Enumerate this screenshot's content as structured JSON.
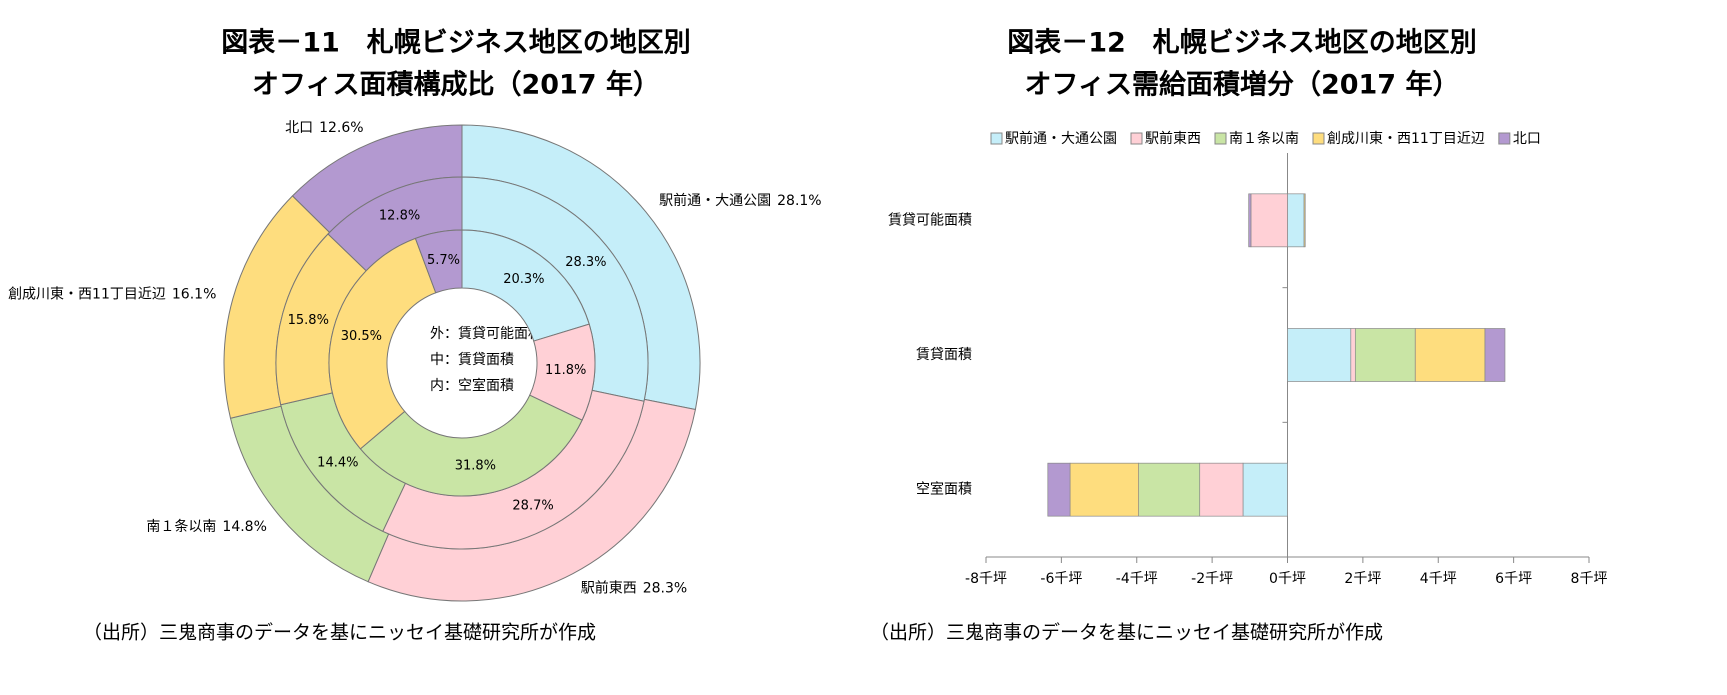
{
  "chart_data": [
    {
      "type": "donut",
      "title": [
        "図表－11　札幌ビジネス地区の地区別",
        "オフィス面積構成比（2017 年）"
      ],
      "categories": [
        "駅前通・大通公園",
        "駅前東西",
        "南１条以南",
        "創成川東・西11丁目近辺",
        "北口"
      ],
      "colors": [
        "#c5eef9",
        "#ffd0d6",
        "#c9e5a5",
        "#fedd7e",
        "#b399d0"
      ],
      "series": [
        {
          "name": "外：賃貸可能面積",
          "values": [
            28.1,
            28.3,
            14.8,
            16.1,
            12.6
          ],
          "value_labels": [
            "28.1%",
            "28.3%",
            "14.8%",
            "16.1%",
            "12.6%"
          ]
        },
        {
          "name": "中：賃貸面積",
          "values": [
            28.3,
            28.7,
            14.4,
            15.8,
            12.8
          ],
          "value_labels": [
            "28.3%",
            "28.7%",
            "14.4%",
            "15.8%",
            "12.8%"
          ]
        },
        {
          "name": "内：空室面積",
          "values": [
            20.3,
            11.8,
            31.8,
            30.5,
            5.7
          ],
          "value_labels": [
            "20.3%",
            "11.8%",
            "31.8%",
            "30.5%",
            "5.7%"
          ]
        }
      ],
      "footnote": "（出所）三鬼商事のデータを基にニッセイ基礎研究所が作成"
    },
    {
      "type": "bar",
      "orientation": "horizontal",
      "stacked": true,
      "title": [
        "図表－12　札幌ビジネス地区の地区別",
        "オフィス需給面積増分（2017 年）"
      ],
      "categories": [
        "賃貸可能面積",
        "賃貸面積",
        "空室面積"
      ],
      "series": [
        {
          "name": "駅前通・大通公園",
          "color": "#c5eef9",
          "values": [
            0.44,
            1.68,
            -1.18
          ]
        },
        {
          "name": "駅前東西",
          "color": "#ffd0d6",
          "values": [
            -0.97,
            0.12,
            -1.15
          ]
        },
        {
          "name": "南１条以南",
          "color": "#c9e5a5",
          "values": [
            0.0,
            1.59,
            -1.62
          ]
        },
        {
          "name": "創成川東・西11丁目近辺",
          "color": "#fedd7e",
          "values": [
            0.03,
            1.85,
            -1.82
          ]
        },
        {
          "name": "北口",
          "color": "#b399d0",
          "values": [
            -0.06,
            0.53,
            -0.59
          ]
        }
      ],
      "legend": "top",
      "xlim": [
        -8,
        8
      ],
      "xticks": [
        {
          "value": -8,
          "label": "-8千坪"
        },
        {
          "value": -6,
          "label": "-6千坪"
        },
        {
          "value": -4,
          "label": "-4千坪"
        },
        {
          "value": -2,
          "label": "-2千坪"
        },
        {
          "value": 0,
          "label": "0千坪"
        },
        {
          "value": 2,
          "label": "2千坪"
        },
        {
          "value": 4,
          "label": "4千坪"
        },
        {
          "value": 6,
          "label": "6千坪"
        },
        {
          "value": 8,
          "label": "8千坪"
        }
      ],
      "footnote": "（出所）三鬼商事のデータを基にニッセイ基礎研究所が作成"
    }
  ]
}
